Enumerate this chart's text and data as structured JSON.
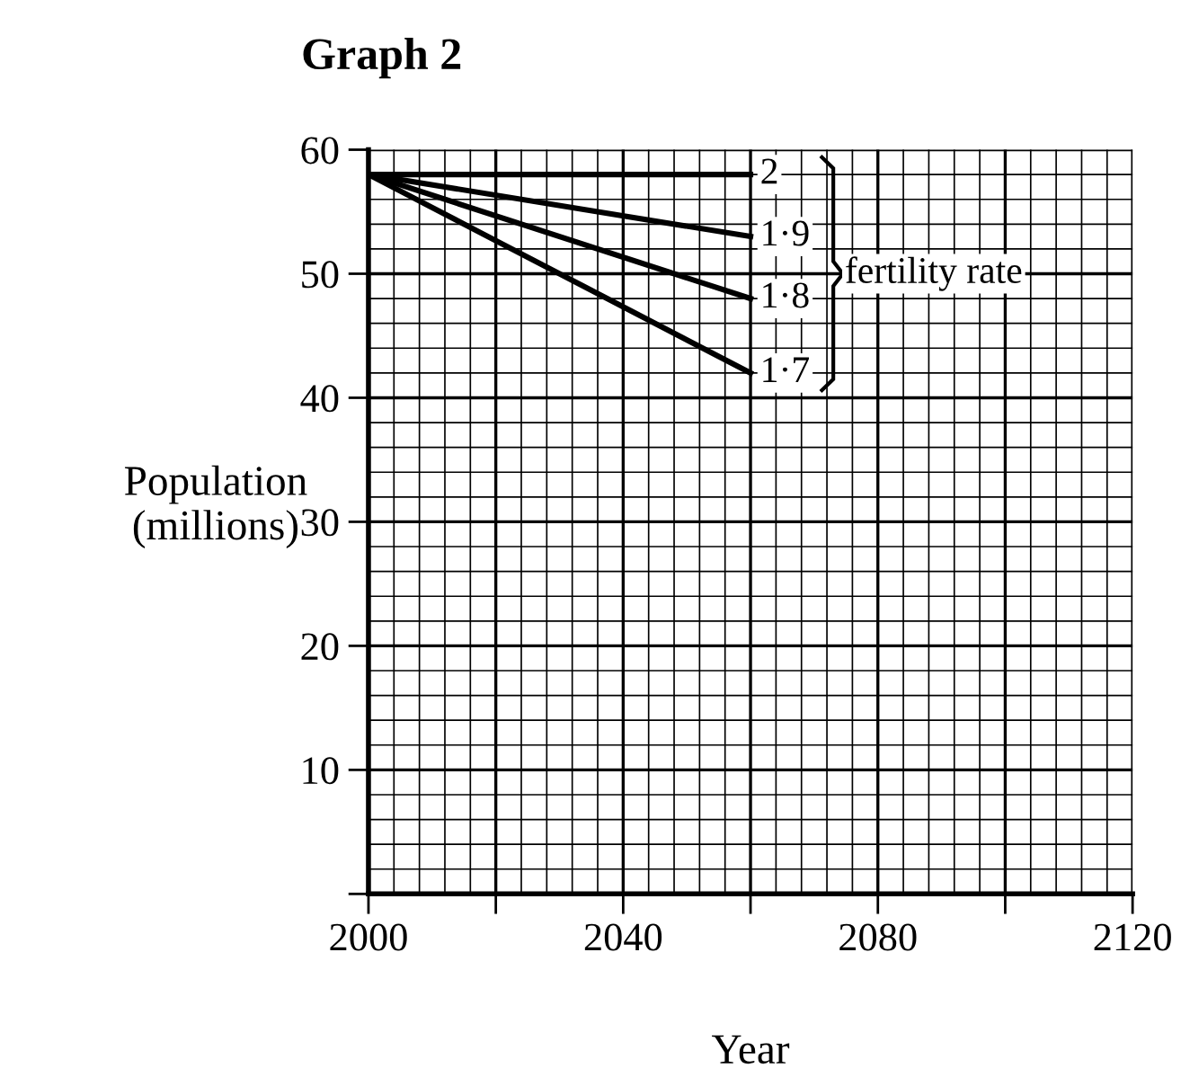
{
  "chart_data": {
    "type": "line",
    "title": "Graph 2",
    "xlabel": "Year",
    "ylabel": "Population\n(millions)",
    "x": [
      2000,
      2060
    ],
    "series": [
      {
        "name": "2",
        "color": "#000000",
        "values": [
          58,
          58
        ]
      },
      {
        "name": "1·9",
        "color": "#000000",
        "values": [
          58,
          53
        ]
      },
      {
        "name": "1·8",
        "color": "#000000",
        "values": [
          58,
          48
        ]
      },
      {
        "name": "1·7",
        "color": "#000000",
        "values": [
          58,
          42
        ]
      }
    ],
    "annotations": [
      "fertility rate"
    ],
    "xlim": [
      2000,
      2120
    ],
    "ylim": [
      0,
      60
    ],
    "xticks": [
      2000,
      {
        "value": 2020,
        "label": null
      },
      2040,
      {
        "value": 2060,
        "label": null
      },
      2080,
      {
        "value": 2100,
        "label": null
      },
      2120
    ],
    "yticks": [
      {
        "value": 0,
        "label": null
      },
      10,
      20,
      30,
      40,
      50,
      60
    ],
    "grid": true,
    "legend": false,
    "marker": "none",
    "line_style": "solid"
  }
}
